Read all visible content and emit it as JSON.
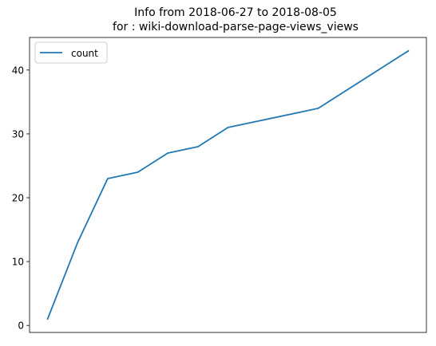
{
  "chart_data": {
    "type": "line",
    "title_line1": "Info from 2018-06-27 to 2018-08-05",
    "title_line2": "for  : wiki-download-parse-page-views_views",
    "xlabel": "",
    "ylabel": "",
    "x_ticks_visible": false,
    "grid": false,
    "legend": "top-left",
    "ylim": [
      -1.1,
      45.1
    ],
    "y_ticks": [
      0,
      10,
      20,
      30,
      40
    ],
    "x": [
      0,
      1,
      2,
      3,
      4,
      5,
      6,
      9,
      12
    ],
    "xlim": [
      -0.6,
      12.6
    ],
    "series": [
      {
        "name": "count",
        "color": "#1f77b4",
        "values": [
          1,
          13,
          23,
          24,
          27,
          28,
          31,
          34,
          43
        ]
      }
    ]
  }
}
